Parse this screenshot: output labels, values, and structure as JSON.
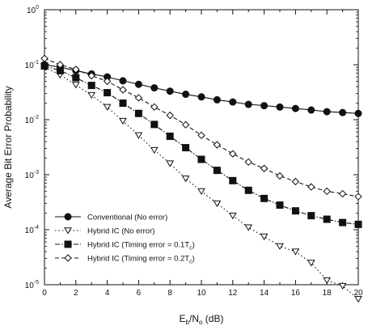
{
  "chart_data": {
    "type": "line",
    "xlabel": {
      "main": "E",
      "sub1": "b",
      "mid": "/N",
      "sub2": "o",
      "tail": " (dB)"
    },
    "ylabel": "Average Bit Error Probability",
    "xlim": [
      0,
      20
    ],
    "ylim": [
      1e-05,
      1
    ],
    "yscale": "log",
    "grid": false,
    "legend_position": "bottom-left",
    "x_ticks": [
      0,
      2,
      4,
      6,
      8,
      10,
      12,
      14,
      16,
      18,
      20
    ],
    "x_tick_labels": [
      "0",
      "2",
      "4",
      "6",
      "8",
      "10",
      "12",
      "14",
      "16",
      "18",
      "20"
    ],
    "y_ticks": [
      1,
      0.1,
      0.01,
      0.001,
      0.0001,
      1e-05
    ],
    "y_tick_labels": [
      {
        "base": "10",
        "exp": "0"
      },
      {
        "base": "10",
        "exp": "-1"
      },
      {
        "base": "10",
        "exp": "-2"
      },
      {
        "base": "10",
        "exp": "-3"
      },
      {
        "base": "10",
        "exp": "-4"
      },
      {
        "base": "10",
        "exp": "-5"
      }
    ],
    "series": [
      {
        "name": "Conventional (No error)",
        "legend": {
          "pre": "Conventional (No error)",
          "sub": "",
          "post": ""
        },
        "marker": "circle-filled",
        "line": "solid",
        "color": "#111111",
        "x": [
          0,
          1,
          2,
          3,
          4,
          5,
          6,
          7,
          8,
          9,
          10,
          11,
          12,
          13,
          14,
          15,
          16,
          17,
          18,
          19,
          20
        ],
        "values": [
          0.1,
          0.09,
          0.078,
          0.068,
          0.06,
          0.051,
          0.044,
          0.038,
          0.033,
          0.029,
          0.026,
          0.023,
          0.021,
          0.019,
          0.018,
          0.017,
          0.016,
          0.015,
          0.014,
          0.0135,
          0.013
        ]
      },
      {
        "name": "Hybrid IC (No error)",
        "legend": {
          "pre": "Hybrid IC (No error)",
          "sub": "",
          "post": ""
        },
        "marker": "triangle-down-open",
        "line": "dotted",
        "color": "#111111",
        "x": [
          0,
          1,
          2,
          3,
          4,
          5,
          6,
          7,
          8,
          9,
          10,
          11,
          12,
          13,
          14,
          15,
          16,
          17,
          18,
          19,
          20
        ],
        "values": [
          0.09,
          0.065,
          0.043,
          0.028,
          0.017,
          0.0095,
          0.0052,
          0.0028,
          0.0016,
          0.00085,
          0.0005,
          0.0003,
          0.00018,
          0.00011,
          7.5e-05,
          5e-05,
          4e-05,
          2.5e-05,
          1.2e-05,
          9.5e-06,
          5.5e-06
        ]
      },
      {
        "name": "Hybrid IC (Timing error = 0.1Tc)",
        "legend": {
          "pre": "Hybrid IC (Timing error = 0.1T",
          "sub": "c",
          "post": ")"
        },
        "marker": "square-filled",
        "line": "dashdot",
        "color": "#111111",
        "x": [
          0,
          1,
          2,
          3,
          4,
          5,
          6,
          7,
          8,
          9,
          10,
          11,
          12,
          13,
          14,
          15,
          16,
          17,
          18,
          19,
          20
        ],
        "values": [
          0.095,
          0.078,
          0.058,
          0.042,
          0.031,
          0.02,
          0.013,
          0.0082,
          0.005,
          0.0031,
          0.0019,
          0.0012,
          0.00078,
          0.00052,
          0.00037,
          0.00028,
          0.00022,
          0.00018,
          0.000155,
          0.000135,
          0.000125
        ]
      },
      {
        "name": "Hybrid IC (Timing error = 0.2Tc)",
        "legend": {
          "pre": "Hybrid IC (Timing error = 0.2T",
          "sub": "c",
          "post": ")"
        },
        "marker": "diamond-open",
        "line": "dashed",
        "color": "#111111",
        "x": [
          0,
          1,
          2,
          3,
          4,
          5,
          6,
          7,
          8,
          9,
          10,
          11,
          12,
          13,
          14,
          15,
          16,
          17,
          18,
          19,
          20
        ],
        "values": [
          0.13,
          0.1,
          0.082,
          0.063,
          0.05,
          0.035,
          0.025,
          0.017,
          0.012,
          0.0081,
          0.0052,
          0.0035,
          0.0024,
          0.0017,
          0.0013,
          0.00095,
          0.00075,
          0.0006,
          0.0005,
          0.00045,
          0.0004
        ]
      }
    ]
  }
}
